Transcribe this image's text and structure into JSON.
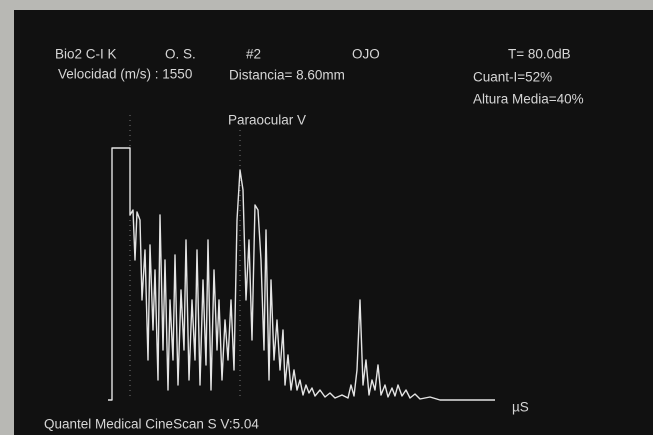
{
  "header": {
    "patient": "Bio2 C-I K",
    "eye": "O. S.",
    "scan": "#2",
    "mode": "OJO",
    "gain": "T= 80.0dB",
    "velocity": "Velocidad (m/s) : 1550",
    "distance": "Distancia= 8.60mm",
    "quant": "Cuant-I=52%",
    "mean_height": "Altura Media=40%"
  },
  "scan": {
    "label": "Paraocular V",
    "unit": "µS"
  },
  "footer": {
    "device": "Quantel Medical CineScan S V:5.04"
  }
}
